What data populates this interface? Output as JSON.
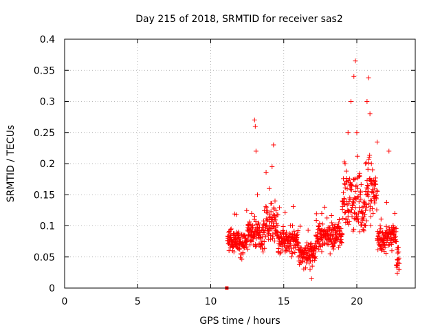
{
  "chart_data": {
    "type": "scatter",
    "title": "Day 215 of 2018, SRMTID for receiver sas2",
    "xlabel": "GPS time / hours",
    "ylabel": "SRMTID / TECUs",
    "xlim": [
      0,
      24
    ],
    "ylim": [
      0,
      0.4
    ],
    "grid": true,
    "xticks": [
      0,
      5,
      10,
      15,
      20
    ],
    "xtick_labels": [
      "0",
      "5",
      "10",
      "15",
      "20"
    ],
    "yticks": [
      0,
      0.05,
      0.1,
      0.15,
      0.2,
      0.25,
      0.3,
      0.35,
      0.4
    ],
    "ytick_labels": [
      "0",
      "0.05",
      "0.1",
      "0.15",
      "0.2",
      "0.25",
      "0.3",
      "0.35",
      "0.4"
    ],
    "series": [
      {
        "name": "SRMTID",
        "marker": "plus",
        "color": "#ff0000",
        "description": "Approximately 1400 plus-marker samples between 11.1 h and 22.9 h; values mostly 0.03-0.12 TECU with enhancements near 13.0 h, 14.2 h and 19.5-21.5 h. The points listed are representative samples read off the figure.",
        "points": [
          [
            11.1,
            0.0
          ],
          [
            11.2,
            0.08
          ],
          [
            11.3,
            0.07
          ],
          [
            11.4,
            0.095
          ],
          [
            11.5,
            0.06
          ],
          [
            11.6,
            0.085
          ],
          [
            11.7,
            0.075
          ],
          [
            11.8,
            0.065
          ],
          [
            11.9,
            0.09
          ],
          [
            12.0,
            0.07
          ],
          [
            12.2,
            0.055
          ],
          [
            12.4,
            0.08
          ],
          [
            12.6,
            0.1
          ],
          [
            12.8,
            0.12
          ],
          [
            13.0,
            0.27
          ],
          [
            13.05,
            0.26
          ],
          [
            13.1,
            0.22
          ],
          [
            13.2,
            0.15
          ],
          [
            13.4,
            0.09
          ],
          [
            13.6,
            0.1
          ],
          [
            13.8,
            0.13
          ],
          [
            14.0,
            0.16
          ],
          [
            14.2,
            0.195
          ],
          [
            14.3,
            0.23
          ],
          [
            14.4,
            0.14
          ],
          [
            14.6,
            0.08
          ],
          [
            14.8,
            0.07
          ],
          [
            15.0,
            0.09
          ],
          [
            15.2,
            0.06
          ],
          [
            15.4,
            0.075
          ],
          [
            15.6,
            0.1
          ],
          [
            15.8,
            0.065
          ],
          [
            16.0,
            0.05
          ],
          [
            16.2,
            0.055
          ],
          [
            16.4,
            0.06
          ],
          [
            16.6,
            0.045
          ],
          [
            16.8,
            0.03
          ],
          [
            16.9,
            0.015
          ],
          [
            17.0,
            0.065
          ],
          [
            17.2,
            0.085
          ],
          [
            17.4,
            0.1
          ],
          [
            17.6,
            0.12
          ],
          [
            17.8,
            0.13
          ],
          [
            18.0,
            0.09
          ],
          [
            18.2,
            0.085
          ],
          [
            18.4,
            0.095
          ],
          [
            18.6,
            0.08
          ],
          [
            18.8,
            0.11
          ],
          [
            19.0,
            0.14
          ],
          [
            19.2,
            0.2
          ],
          [
            19.4,
            0.25
          ],
          [
            19.6,
            0.3
          ],
          [
            19.8,
            0.34
          ],
          [
            19.9,
            0.365
          ],
          [
            20.0,
            0.25
          ],
          [
            20.2,
            0.18
          ],
          [
            20.4,
            0.12
          ],
          [
            20.6,
            0.2
          ],
          [
            20.7,
            0.3
          ],
          [
            20.8,
            0.338
          ],
          [
            20.9,
            0.28
          ],
          [
            21.0,
            0.2
          ],
          [
            21.2,
            0.14
          ],
          [
            21.4,
            0.08
          ],
          [
            21.6,
            0.1
          ],
          [
            21.8,
            0.065
          ],
          [
            22.0,
            0.09
          ],
          [
            22.2,
            0.22
          ],
          [
            22.4,
            0.06
          ],
          [
            22.6,
            0.12
          ],
          [
            22.8,
            0.045
          ],
          [
            22.9,
            0.03
          ]
        ]
      }
    ]
  }
}
